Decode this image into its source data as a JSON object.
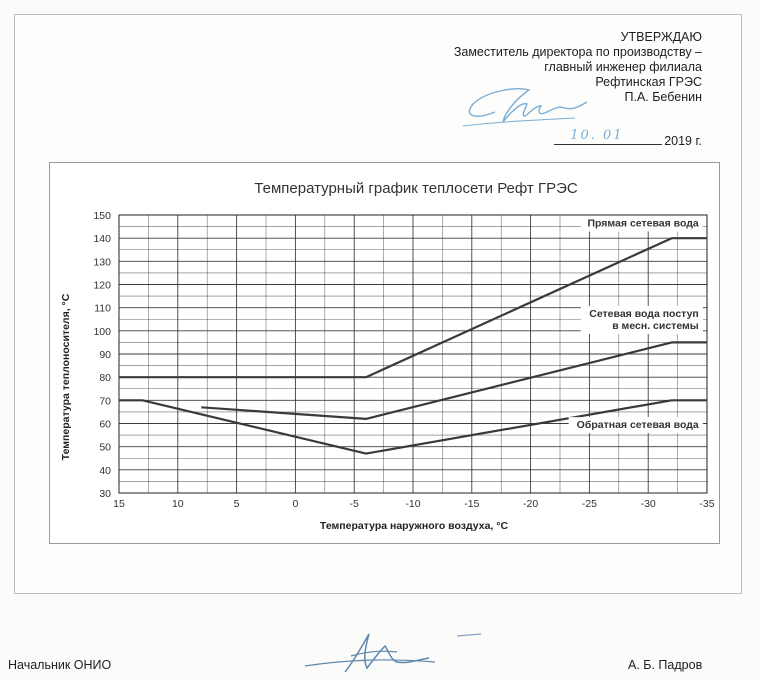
{
  "approval": {
    "heading": "УТВЕРЖДАЮ",
    "line1": "Заместитель директора по производству –",
    "line2": "главный инженер филиала",
    "line3": "Рефтинская ГРЭС",
    "signatory": "П.А. Бебенин",
    "date_handwritten": "10. 01",
    "year": "2019 г."
  },
  "footer": {
    "position": "Начальник ОНИО",
    "name": "А. Б. Падров"
  },
  "colors": {
    "line": "#3a3a3a",
    "grid": "#2a2a2a",
    "signature_ink": "#7aaed6"
  },
  "chart_data": {
    "type": "line",
    "title": "Температурный график теплосети Рефт ГРЭС",
    "xlabel": "Температура наружного воздуха, °С",
    "ylabel": "Температура теплоносителя, °С",
    "xlim": [
      15,
      -35
    ],
    "ylim": [
      30,
      150
    ],
    "x_ticks": [
      15,
      10,
      5,
      0,
      -5,
      -10,
      -15,
      -20,
      -25,
      -30,
      -35
    ],
    "x_tick_labels": [
      "15",
      "10",
      "5",
      "0",
      "-5",
      "-10",
      "-15",
      "-20",
      "-25",
      "-30",
      "-35"
    ],
    "y_ticks": [
      30,
      40,
      50,
      60,
      70,
      80,
      90,
      100,
      110,
      120,
      130,
      140,
      150
    ],
    "y_tick_labels": [
      "30",
      "40",
      "50",
      "60",
      "70",
      "80",
      "90",
      "100",
      "110",
      "120",
      "130",
      "140",
      "150"
    ],
    "grid": true,
    "series": [
      {
        "name": "Прямая сетевая вода",
        "points": [
          [
            15,
            80
          ],
          [
            -6,
            80
          ],
          [
            -32,
            140
          ],
          [
            -35,
            140
          ]
        ]
      },
      {
        "name": "Сетевая вода поступ в месн. системы",
        "points": [
          [
            8,
            67
          ],
          [
            -6,
            62
          ],
          [
            -32,
            95
          ],
          [
            -35,
            95
          ]
        ]
      },
      {
        "name": "Обратная сетевая вода",
        "points": [
          [
            15,
            70
          ],
          [
            13,
            70
          ],
          [
            -6,
            47
          ],
          [
            -32,
            70
          ],
          [
            -35,
            70
          ]
        ]
      }
    ]
  }
}
